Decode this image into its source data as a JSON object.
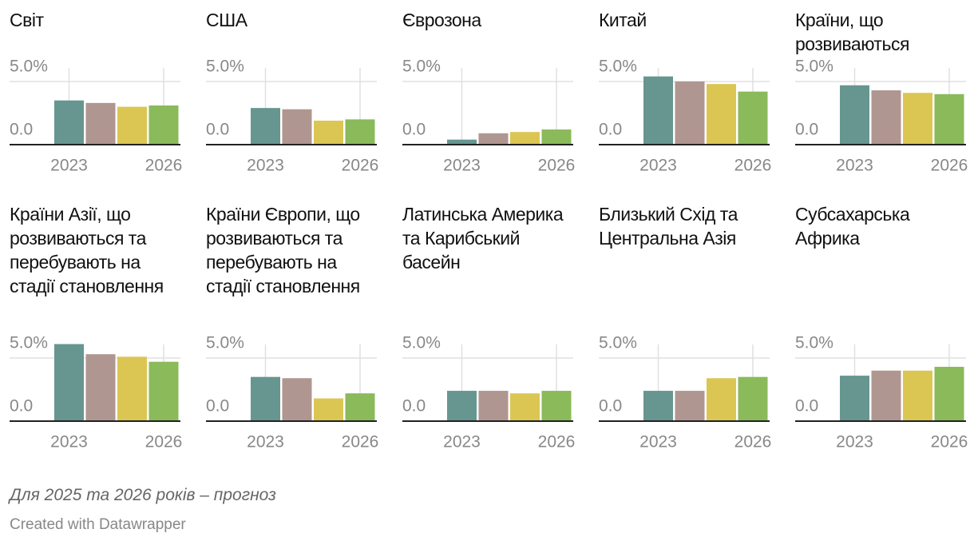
{
  "chart_data": [
    {
      "type": "bar",
      "title": "Світ",
      "categories": [
        "2023",
        null,
        null,
        "2026"
      ],
      "values": [
        3.5,
        3.3,
        3.0,
        3.1
      ],
      "colors": [
        "#66968f",
        "#b09690",
        "#dbc654",
        "#8aba5a"
      ],
      "ylim": [
        0,
        6.2
      ],
      "yticks": [
        {
          "value": 0,
          "label": "0.0"
        },
        {
          "value": 5,
          "label": "5.0%"
        }
      ],
      "grid": true
    },
    {
      "type": "bar",
      "title": "США",
      "categories": [
        "2023",
        null,
        null,
        "2026"
      ],
      "values": [
        2.9,
        2.8,
        1.9,
        2.0
      ],
      "colors": [
        "#66968f",
        "#b09690",
        "#dbc654",
        "#8aba5a"
      ],
      "ylim": [
        0,
        6.2
      ],
      "yticks": [
        {
          "value": 0,
          "label": "0.0"
        },
        {
          "value": 5,
          "label": "5.0%"
        }
      ],
      "grid": true
    },
    {
      "type": "bar",
      "title": "Єврозона",
      "categories": [
        "2023",
        null,
        null,
        "2026"
      ],
      "values": [
        0.4,
        0.9,
        1.0,
        1.2
      ],
      "colors": [
        "#66968f",
        "#b09690",
        "#dbc654",
        "#8aba5a"
      ],
      "ylim": [
        0,
        6.2
      ],
      "yticks": [
        {
          "value": 0,
          "label": "0.0"
        },
        {
          "value": 5,
          "label": "5.0%"
        }
      ],
      "grid": true
    },
    {
      "type": "bar",
      "title": "Китай",
      "categories": [
        "2023",
        null,
        null,
        "2026"
      ],
      "values": [
        5.4,
        5.0,
        4.8,
        4.2
      ],
      "colors": [
        "#66968f",
        "#b09690",
        "#dbc654",
        "#8aba5a"
      ],
      "ylim": [
        0,
        6.2
      ],
      "yticks": [
        {
          "value": 0,
          "label": "0.0"
        },
        {
          "value": 5,
          "label": "5.0%"
        }
      ],
      "grid": true
    },
    {
      "type": "bar",
      "title": "Країни, що розвиваються",
      "categories": [
        "2023",
        null,
        null,
        "2026"
      ],
      "values": [
        4.7,
        4.3,
        4.1,
        4.0
      ],
      "colors": [
        "#66968f",
        "#b09690",
        "#dbc654",
        "#8aba5a"
      ],
      "ylim": [
        0,
        6.2
      ],
      "yticks": [
        {
          "value": 0,
          "label": "0.0"
        },
        {
          "value": 5,
          "label": "5.0%"
        }
      ],
      "grid": true
    },
    {
      "type": "bar",
      "title": "Країни Азії, що розвиваються та перебувають на стадії становлення",
      "categories": [
        "2023",
        null,
        null,
        "2026"
      ],
      "values": [
        6.1,
        5.3,
        5.1,
        4.7
      ],
      "colors": [
        "#66968f",
        "#b09690",
        "#dbc654",
        "#8aba5a"
      ],
      "ylim": [
        0,
        6.2
      ],
      "yticks": [
        {
          "value": 0,
          "label": "0.0"
        },
        {
          "value": 5,
          "label": "5.0%"
        }
      ],
      "grid": true
    },
    {
      "type": "bar",
      "title": "Країни Європи, що розвиваються та перебувають на стадії становлення",
      "categories": [
        "2023",
        null,
        null,
        "2026"
      ],
      "values": [
        3.5,
        3.4,
        1.8,
        2.2
      ],
      "colors": [
        "#66968f",
        "#b09690",
        "#dbc654",
        "#8aba5a"
      ],
      "ylim": [
        0,
        6.2
      ],
      "yticks": [
        {
          "value": 0,
          "label": "0.0"
        },
        {
          "value": 5,
          "label": "5.0%"
        }
      ],
      "grid": true
    },
    {
      "type": "bar",
      "title": "Латинська Америка та Карибський басейн",
      "categories": [
        "2023",
        null,
        null,
        "2026"
      ],
      "values": [
        2.4,
        2.4,
        2.2,
        2.4
      ],
      "colors": [
        "#66968f",
        "#b09690",
        "#dbc654",
        "#8aba5a"
      ],
      "ylim": [
        0,
        6.2
      ],
      "yticks": [
        {
          "value": 0,
          "label": "0.0"
        },
        {
          "value": 5,
          "label": "5.0%"
        }
      ],
      "grid": true
    },
    {
      "type": "bar",
      "title": "Близький Схід та Центральна Азія",
      "categories": [
        "2023",
        null,
        null,
        "2026"
      ],
      "values": [
        2.4,
        2.4,
        3.4,
        3.5
      ],
      "colors": [
        "#66968f",
        "#b09690",
        "#dbc654",
        "#8aba5a"
      ],
      "ylim": [
        0,
        6.2
      ],
      "yticks": [
        {
          "value": 0,
          "label": "0.0"
        },
        {
          "value": 5,
          "label": "5.0%"
        }
      ],
      "grid": true
    },
    {
      "type": "bar",
      "title": "Субсахарська Африка",
      "categories": [
        "2023",
        null,
        null,
        "2026"
      ],
      "values": [
        3.6,
        4.0,
        4.0,
        4.3
      ],
      "colors": [
        "#66968f",
        "#b09690",
        "#dbc654",
        "#8aba5a"
      ],
      "ylim": [
        0,
        6.2
      ],
      "yticks": [
        {
          "value": 0,
          "label": "0.0"
        },
        {
          "value": 5,
          "label": "5.0%"
        }
      ],
      "grid": true
    }
  ],
  "note": "Для 2025 та 2026 років – прогноз",
  "credit": "Created with Datawrapper"
}
